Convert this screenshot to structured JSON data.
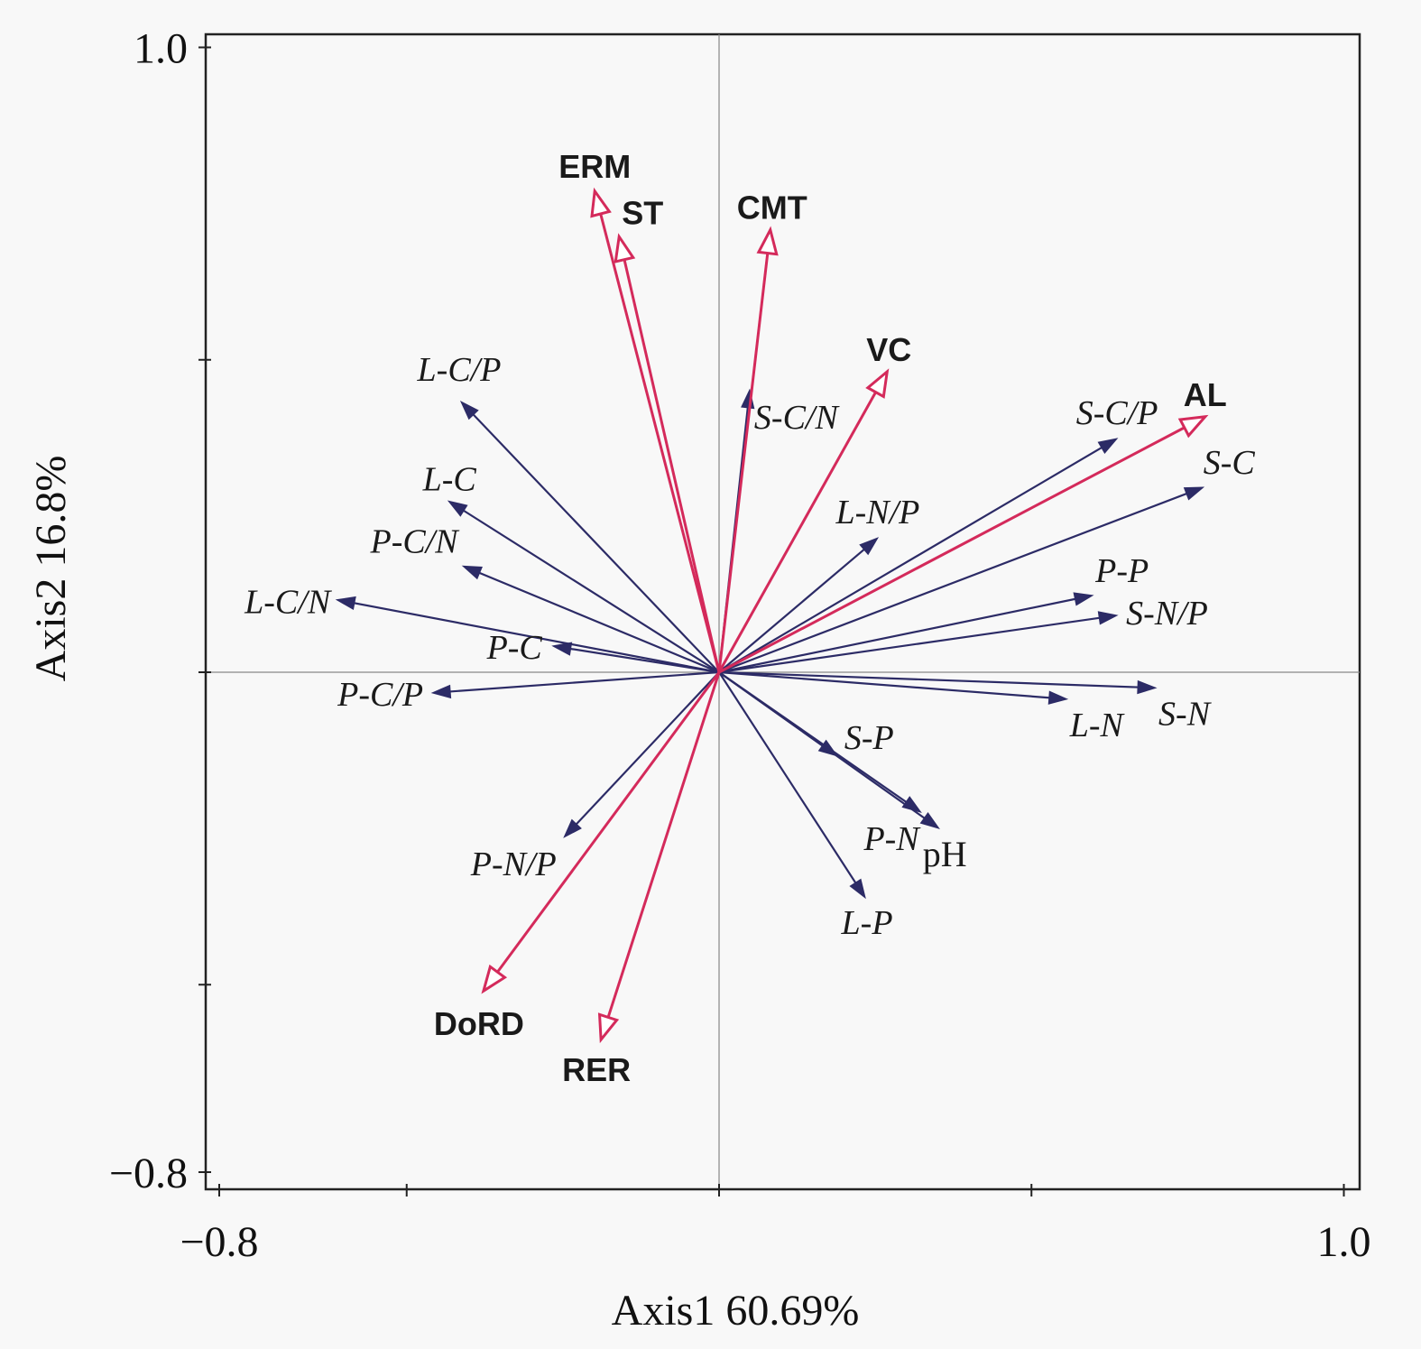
{
  "chart_data": {
    "type": "scatter",
    "subtype": "rda-biplot",
    "title": "",
    "xlabel": "Axis1 60.69%",
    "ylabel": "Axis2 16.8%",
    "xlim": [
      -0.8,
      1.0
    ],
    "ylim": [
      -0.8,
      1.0
    ],
    "x_ticks": [
      -0.8,
      -0.5,
      0,
      0.5,
      1.0
    ],
    "y_ticks": [
      -0.8,
      -0.5,
      0,
      0.5,
      1.0
    ],
    "x_tick_labels": {
      "-0.8": "−0.8",
      "1.0": "1.0"
    },
    "y_tick_labels": {
      "-0.8": "−0.8",
      "1.0": "1.0"
    },
    "grid": false,
    "reference_lines": [
      0
    ],
    "colors": {
      "explanatory": "#d42a5b",
      "response": "#2c2b66",
      "frame": "#222222"
    },
    "explanatory_arrows": [
      {
        "name": "ERM",
        "x": -0.199,
        "y": 0.77
      },
      {
        "name": "ST",
        "x": -0.16,
        "y": 0.697
      },
      {
        "name": "CMT",
        "x": 0.082,
        "y": 0.708
      },
      {
        "name": "VC",
        "x": 0.269,
        "y": 0.481
      },
      {
        "name": "AL",
        "x": 0.778,
        "y": 0.409
      },
      {
        "name": "DoRD",
        "x": -0.377,
        "y": -0.51
      },
      {
        "name": "RER",
        "x": -0.189,
        "y": -0.588
      }
    ],
    "response_arrows": [
      {
        "name": "L-C/P",
        "x": -0.413,
        "y": 0.433
      },
      {
        "name": "L-C",
        "x": -0.433,
        "y": 0.274
      },
      {
        "name": "P-C/N",
        "x": -0.41,
        "y": 0.17
      },
      {
        "name": "L-C/N",
        "x": -0.612,
        "y": 0.116
      },
      {
        "name": "P-C",
        "x": -0.266,
        "y": 0.042
      },
      {
        "name": "P-C/P",
        "x": -0.459,
        "y": -0.033
      },
      {
        "name": "S-C/N",
        "x": 0.049,
        "y": 0.452
      },
      {
        "name": "L-N/P",
        "x": 0.254,
        "y": 0.215
      },
      {
        "name": "S-C/P",
        "x": 0.637,
        "y": 0.374
      },
      {
        "name": "S-C",
        "x": 0.775,
        "y": 0.296
      },
      {
        "name": "P-P",
        "x": 0.598,
        "y": 0.123
      },
      {
        "name": "S-N/P",
        "x": 0.637,
        "y": 0.091
      },
      {
        "name": "L-N",
        "x": 0.557,
        "y": -0.043
      },
      {
        "name": "S-N",
        "x": 0.699,
        "y": -0.025
      },
      {
        "name": "S-P",
        "x": 0.189,
        "y": -0.134
      },
      {
        "name": "P-N",
        "x": 0.323,
        "y": -0.224
      },
      {
        "name": "pH",
        "x": 0.352,
        "y": -0.25
      },
      {
        "name": "L-P",
        "x": 0.234,
        "y": -0.361
      },
      {
        "name": "P-N/P",
        "x": -0.248,
        "y": -0.264
      }
    ]
  }
}
